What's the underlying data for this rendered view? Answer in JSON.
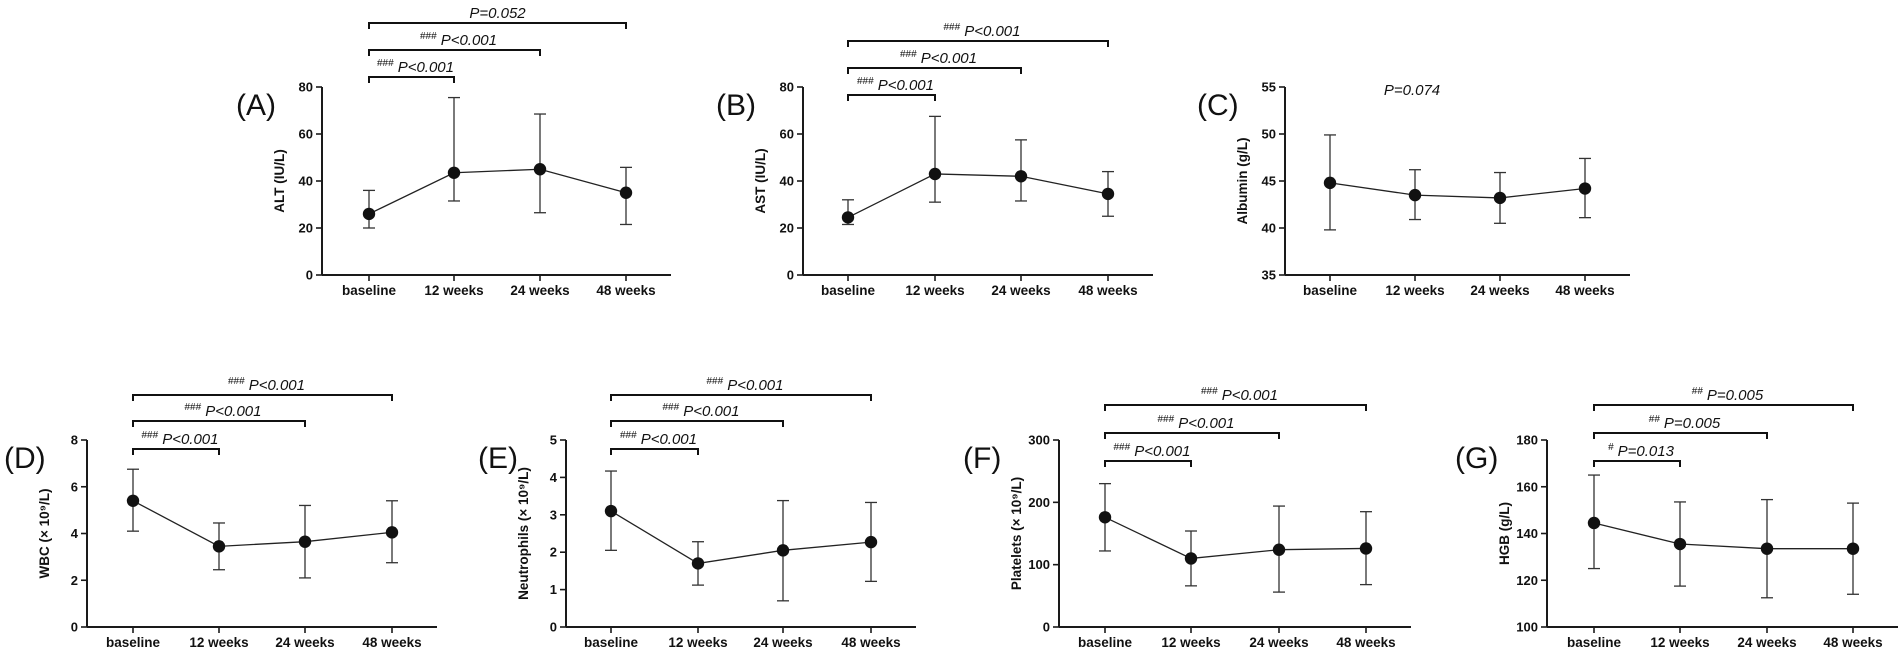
{
  "chart_data": [
    {
      "panel": "(A)",
      "type": "line",
      "categories": [
        "baseline",
        "12 weeks",
        "24 weeks",
        "48 weeks"
      ],
      "ylabel": "ALT (IU/L)",
      "ylim": [
        0,
        80
      ],
      "yticks": [
        0,
        20,
        40,
        60,
        80
      ],
      "series": [
        {
          "name": "ALT",
          "values": [
            26,
            43.5,
            45,
            35
          ],
          "err_low": [
            20,
            31.5,
            26.5,
            21.5
          ],
          "err_high": [
            36,
            75.5,
            68.5,
            45.8
          ]
        }
      ],
      "comparisons": [
        {
          "from": 0,
          "to": 1,
          "sig": "###",
          "label": "P<0.001"
        },
        {
          "from": 0,
          "to": 2,
          "sig": "###",
          "label": "P<0.001"
        },
        {
          "from": 0,
          "to": 3,
          "sig": "",
          "label": "P=0.052"
        }
      ]
    },
    {
      "panel": "(B)",
      "type": "line",
      "categories": [
        "baseline",
        "12 weeks",
        "24 weeks",
        "48 weeks"
      ],
      "ylabel": "AST (IU/L)",
      "ylim": [
        0,
        80
      ],
      "yticks": [
        0,
        20,
        40,
        60,
        80
      ],
      "series": [
        {
          "name": "AST",
          "values": [
            24.5,
            43,
            42,
            34.5
          ],
          "err_low": [
            21.5,
            31,
            31.5,
            25
          ],
          "err_high": [
            32,
            67.5,
            57.5,
            44
          ]
        }
      ],
      "comparisons": [
        {
          "from": 0,
          "to": 1,
          "sig": "###",
          "label": "P<0.001"
        },
        {
          "from": 0,
          "to": 2,
          "sig": "###",
          "label": "P<0.001"
        },
        {
          "from": 0,
          "to": 3,
          "sig": "###",
          "label": "P<0.001"
        }
      ]
    },
    {
      "panel": "(C)",
      "type": "line",
      "categories": [
        "baseline",
        "12 weeks",
        "24 weeks",
        "48 weeks"
      ],
      "ylabel": "Albumin (g/L)",
      "ylim": [
        35,
        55
      ],
      "yticks": [
        35,
        40,
        45,
        50,
        55
      ],
      "series": [
        {
          "name": "Albumin",
          "values": [
            44.8,
            43.5,
            43.2,
            44.2
          ],
          "err_low": [
            39.8,
            40.9,
            40.5,
            41.1
          ],
          "err_high": [
            49.9,
            46.2,
            45.9,
            47.4
          ]
        }
      ],
      "comparisons": [],
      "note": "P=0.074"
    },
    {
      "panel": "(D)",
      "type": "line",
      "categories": [
        "baseline",
        "12 weeks",
        "24 weeks",
        "48 weeks"
      ],
      "ylabel": "WBC (× 10⁹/L)",
      "ylim": [
        0,
        8
      ],
      "yticks": [
        0,
        2,
        4,
        6,
        8
      ],
      "series": [
        {
          "name": "WBC",
          "values": [
            5.4,
            3.45,
            3.65,
            4.05
          ],
          "err_low": [
            4.1,
            2.45,
            2.1,
            2.75
          ],
          "err_high": [
            6.75,
            4.45,
            5.2,
            5.4
          ]
        }
      ],
      "comparisons": [
        {
          "from": 0,
          "to": 1,
          "sig": "###",
          "label": "P<0.001"
        },
        {
          "from": 0,
          "to": 2,
          "sig": "###",
          "label": "P<0.001"
        },
        {
          "from": 0,
          "to": 3,
          "sig": "###",
          "label": "P<0.001"
        }
      ]
    },
    {
      "panel": "(E)",
      "type": "line",
      "categories": [
        "baseline",
        "12 weeks",
        "24 weeks",
        "48 weeks"
      ],
      "ylabel": "Neutrophils (× 10⁹/L)",
      "ylim": [
        0,
        5
      ],
      "yticks": [
        0,
        1,
        2,
        3,
        4,
        5
      ],
      "series": [
        {
          "name": "Neutrophils",
          "values": [
            3.1,
            1.7,
            2.05,
            2.27
          ],
          "err_low": [
            2.05,
            1.12,
            0.7,
            1.22
          ],
          "err_high": [
            4.17,
            2.28,
            3.38,
            3.33
          ]
        }
      ],
      "comparisons": [
        {
          "from": 0,
          "to": 1,
          "sig": "###",
          "label": "P<0.001"
        },
        {
          "from": 0,
          "to": 2,
          "sig": "###",
          "label": "P<0.001"
        },
        {
          "from": 0,
          "to": 3,
          "sig": "###",
          "label": "P<0.001"
        }
      ]
    },
    {
      "panel": "(F)",
      "type": "line",
      "categories": [
        "baseline",
        "12 weeks",
        "24 weeks",
        "48 weeks"
      ],
      "ylabel": "Platelets (× 10⁹/L)",
      "ylim": [
        0,
        300
      ],
      "yticks": [
        0,
        100,
        200,
        300
      ],
      "series": [
        {
          "name": "Platelets",
          "values": [
            176,
            110,
            124,
            126
          ],
          "err_low": [
            122,
            66,
            56,
            68
          ],
          "err_high": [
            230,
            154,
            194,
            185
          ]
        }
      ],
      "comparisons": [
        {
          "from": 0,
          "to": 1,
          "sig": "###",
          "label": "P<0.001"
        },
        {
          "from": 0,
          "to": 2,
          "sig": "###",
          "label": "P<0.001"
        },
        {
          "from": 0,
          "to": 3,
          "sig": "###",
          "label": "P<0.001"
        }
      ]
    },
    {
      "panel": "(G)",
      "type": "line",
      "categories": [
        "baseline",
        "12 weeks",
        "24 weeks",
        "48 weeks"
      ],
      "ylabel": "HGB (g/L)",
      "ylim": [
        100,
        180
      ],
      "yticks": [
        100,
        120,
        140,
        160,
        180
      ],
      "series": [
        {
          "name": "HGB",
          "values": [
            144.5,
            135.5,
            133.5,
            133.5
          ],
          "err_low": [
            125,
            117.5,
            112.5,
            114
          ],
          "err_high": [
            165,
            153.5,
            154.5,
            153
          ]
        }
      ],
      "comparisons": [
        {
          "from": 0,
          "to": 1,
          "sig": "#",
          "label": "P=0.013"
        },
        {
          "from": 0,
          "to": 2,
          "sig": "##",
          "label": "P=0.005"
        },
        {
          "from": 0,
          "to": 3,
          "sig": "##",
          "label": "P=0.005"
        }
      ]
    }
  ]
}
